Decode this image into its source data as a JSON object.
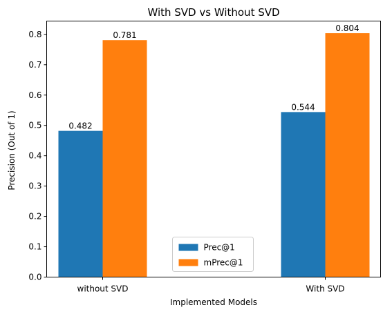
{
  "chart_data": {
    "type": "bar",
    "title": "With SVD vs Without SVD",
    "xlabel": "Implemented Models",
    "ylabel": "Precision (Out of 1)",
    "categories": [
      "without SVD",
      "With SVD"
    ],
    "series": [
      {
        "name": "Prec@1",
        "values": [
          0.482,
          0.544
        ],
        "color": "#1f77b4"
      },
      {
        "name": "mPrec@1",
        "values": [
          0.781,
          0.804
        ],
        "color": "#ff7f0e"
      }
    ],
    "data_labels": [
      [
        "0.482",
        "0.544"
      ],
      [
        "0.781",
        "0.804"
      ]
    ],
    "ylim": [
      0,
      0.844
    ],
    "yticks": [
      0.0,
      0.1,
      0.2,
      0.3,
      0.4,
      0.5,
      0.6,
      0.7,
      0.8
    ],
    "ytick_labels": [
      "0.0",
      "0.1",
      "0.2",
      "0.3",
      "0.4",
      "0.5",
      "0.6",
      "0.7",
      "0.8"
    ],
    "grid": false,
    "legend": {
      "position": "bottom-center",
      "entries": [
        "Prec@1",
        "mPrec@1"
      ]
    }
  }
}
